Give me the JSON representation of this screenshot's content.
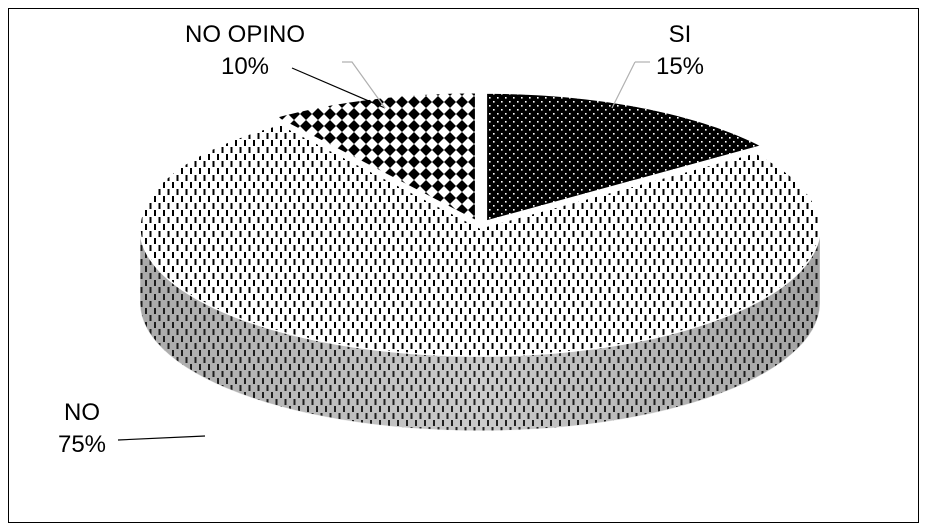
{
  "chart_data": {
    "type": "pie",
    "style": "3d-exploded",
    "title": "",
    "start": "12 o'clock, clockwise",
    "slices": [
      {
        "label": "SI",
        "value": 15,
        "value_label": "15%",
        "pattern": "dots-on-black"
      },
      {
        "label": "NO",
        "value": 75,
        "value_label": "75%",
        "pattern": "vertical-dashes-on-white"
      },
      {
        "label": "NO OPINO",
        "value": 10,
        "value_label": "10%",
        "pattern": "diamond-checker"
      }
    ],
    "leader_line_color": "#b0b0b0",
    "legend": "none",
    "border": true
  }
}
